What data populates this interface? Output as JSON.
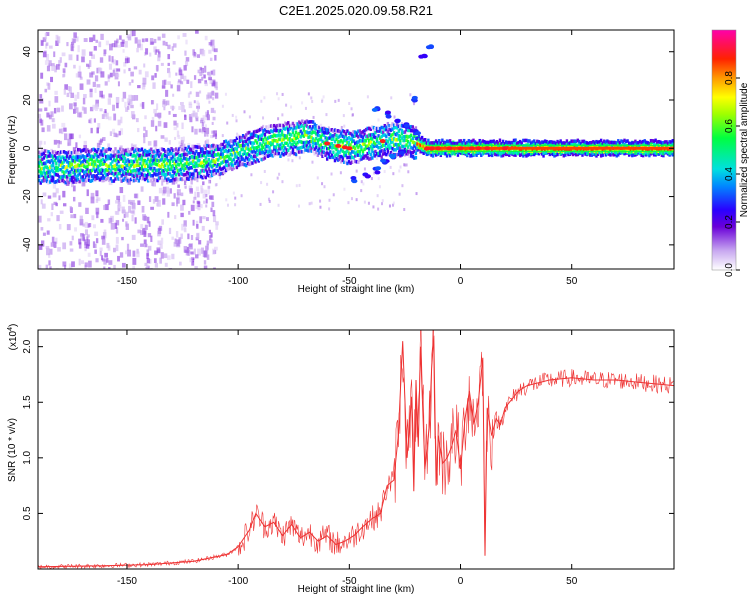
{
  "title": "C2E1.2025.020.09.58.R21",
  "colorbar": {
    "label": "Normalized spectral amplitude",
    "range": [
      0.0,
      1.0
    ],
    "ticks": [
      "0.0",
      "0.2",
      "0.4",
      "0.6",
      "0.8"
    ]
  },
  "chart_data": [
    {
      "type": "heatmap",
      "title": "C2E1.2025.020.09.58.R21",
      "xlabel": "Height of straight line (km)",
      "ylabel": "Frequency (Hz)",
      "xlim": [
        -190,
        96
      ],
      "ylim": [
        -50,
        49
      ],
      "x_ticks": [
        "-150",
        "-100",
        "-50",
        "0",
        "50"
      ],
      "y_ticks": [
        "-40",
        "-20",
        "0",
        "20",
        "40"
      ],
      "grid": false,
      "main_trace": {
        "description_points_x": [
          -190,
          -160,
          -130,
          -110,
          -95,
          -85,
          -75,
          -70,
          -60,
          -50,
          -40,
          -30,
          -25,
          -20,
          -15,
          -10,
          0,
          20,
          50,
          96
        ],
        "frequency_hz": [
          -8,
          -7,
          -7,
          -5,
          0,
          3,
          4,
          5,
          2,
          0,
          2,
          4,
          3,
          2,
          0,
          0,
          0,
          0,
          0,
          0
        ]
      },
      "secondary_branches": [
        {
          "x": [
            -48,
            -42,
            -38,
            -34,
            -30,
            -26
          ],
          "y": [
            -13,
            -11,
            -9,
            -6,
            -4,
            -2
          ]
        },
        {
          "x": [
            -38,
            -32,
            -28,
            -24,
            -20
          ],
          "y": [
            16,
            14,
            12,
            9,
            7
          ]
        },
        {
          "x": [
            -20,
            -17,
            -14
          ],
          "y": [
            20,
            38,
            42
          ]
        }
      ]
    },
    {
      "type": "line",
      "xlabel": "Height of straight line (km)",
      "ylabel": "SNR (10 * v/v)",
      "y_multiplier": "(x10^4)",
      "xlim": [
        -190,
        96
      ],
      "ylim": [
        0,
        2.15
      ],
      "x_ticks": [
        "-150",
        "-100",
        "-50",
        "0",
        "50"
      ],
      "y_ticks": [
        "0.5",
        "1.0",
        "1.5",
        "2.0"
      ],
      "series": [
        {
          "color": "#ee3333",
          "x": [
            -190,
            -160,
            -140,
            -120,
            -105,
            -100,
            -95,
            -92,
            -88,
            -84,
            -80,
            -76,
            -72,
            -68,
            -64,
            -60,
            -56,
            -52,
            -48,
            -44,
            -40,
            -36,
            -33,
            -30,
            -28,
            -26,
            -24,
            -22,
            -21,
            -20,
            -19,
            -18,
            -16,
            -14,
            -13,
            -12,
            -11,
            -10,
            -8,
            -6,
            -4,
            -2,
            0,
            2,
            4,
            6,
            8,
            10,
            11,
            12,
            14,
            16,
            18,
            20,
            22,
            24,
            26,
            30,
            40,
            50,
            60,
            70,
            80,
            96
          ],
          "y": [
            0.02,
            0.03,
            0.04,
            0.07,
            0.13,
            0.2,
            0.35,
            0.5,
            0.38,
            0.42,
            0.3,
            0.4,
            0.28,
            0.33,
            0.25,
            0.3,
            0.22,
            0.25,
            0.3,
            0.38,
            0.45,
            0.5,
            0.75,
            0.8,
            1.2,
            2.05,
            1.0,
            1.55,
            0.7,
            1.7,
            1.1,
            2.0,
            0.9,
            1.3,
            1.8,
            2.1,
            0.75,
            1.2,
            0.95,
            1.0,
            1.1,
            1.25,
            0.9,
            1.35,
            1.6,
            1.3,
            1.5,
            1.9,
            0.12,
            1.45,
            1.2,
            1.35,
            1.3,
            1.45,
            1.5,
            1.55,
            1.6,
            1.65,
            1.7,
            1.72,
            1.7,
            1.7,
            1.68,
            1.65
          ]
        }
      ]
    }
  ]
}
